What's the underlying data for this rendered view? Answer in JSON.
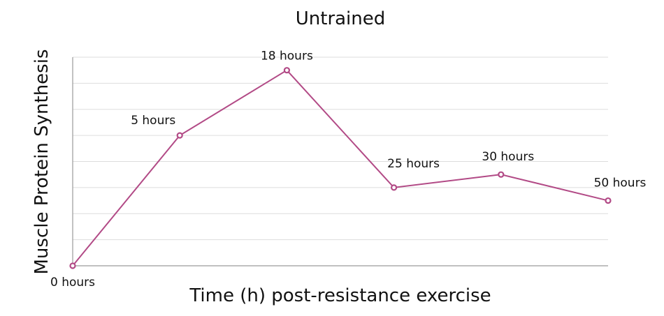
{
  "chart_data": {
    "type": "line",
    "title": "Untrained",
    "xlabel": "Time (h) post-resistance exercise",
    "ylabel": "Muscle Protein Synthesis",
    "x_is_categorical": true,
    "categories": [
      "0 hours",
      "5 hours",
      "18 hours",
      "25 hours",
      "30 hours",
      "50 hours"
    ],
    "series": [
      {
        "values": [
          0,
          50,
          75,
          30,
          35,
          25
        ],
        "color": "#b24a86"
      }
    ],
    "ylim": [
      0,
      80
    ],
    "grid": true,
    "legend": "none"
  }
}
